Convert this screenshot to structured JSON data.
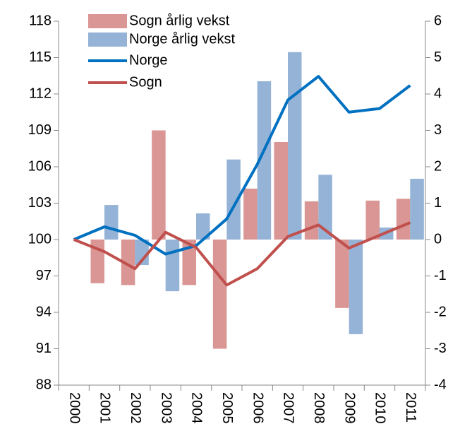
{
  "chart_data": {
    "type": "combo",
    "categories": [
      "2000",
      "2001",
      "2002",
      "2003",
      "2004",
      "2005",
      "2006",
      "2007",
      "2008",
      "2009",
      "2010",
      "2011"
    ],
    "series": [
      {
        "name": "Sogn årlig vekst",
        "type": "bar",
        "axis": "y2",
        "color": "#d99694",
        "values": [
          null,
          -1.2,
          -1.25,
          3.0,
          -1.25,
          -3.0,
          1.4,
          2.68,
          1.05,
          -1.88,
          1.07,
          1.12
        ]
      },
      {
        "name": "Norge årlig vekst",
        "type": "bar",
        "axis": "y2",
        "color": "#95b3d7",
        "values": [
          null,
          0.95,
          -0.7,
          -1.42,
          0.72,
          2.2,
          4.35,
          5.15,
          1.78,
          -2.6,
          0.33,
          1.67
        ]
      },
      {
        "name": "Norge",
        "type": "line",
        "color": "#0070c0",
        "values": [
          100,
          101.05,
          100.35,
          98.8,
          99.5,
          101.7,
          106.2,
          111.5,
          113.45,
          110.5,
          110.8,
          112.7
        ]
      },
      {
        "name": "Sogn",
        "type": "line",
        "color": "#c0504d",
        "values": [
          100,
          99.0,
          97.6,
          100.6,
          99.35,
          96.25,
          97.6,
          100.25,
          101.2,
          99.3,
          100.35,
          101.4
        ]
      }
    ],
    "ylim": [
      88,
      118
    ],
    "yticks": [
      88,
      91,
      94,
      97,
      100,
      103,
      106,
      109,
      112,
      115,
      118
    ],
    "y2lim": [
      -4,
      6
    ],
    "y2ticks": [
      -4,
      -3,
      -2,
      -1,
      0,
      1,
      2,
      3,
      4,
      5,
      6
    ],
    "grid": false,
    "legend": "top-left"
  }
}
